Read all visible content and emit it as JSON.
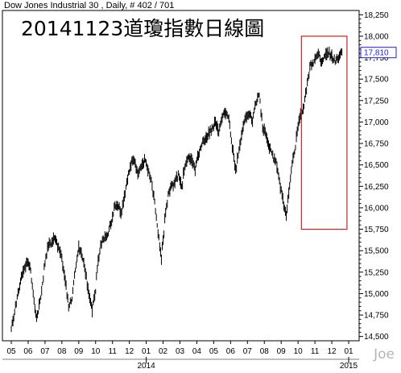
{
  "header": {
    "info": "Dow Jones Industrial 30 , Daily, # 402 / 701",
    "title": "20141123道瓊指數日線圖",
    "watermark": "Joe"
  },
  "chart_data": {
    "type": "line",
    "title": "20141123道瓊指數日線圖",
    "subtitle": "Dow Jones Industrial 30 , Daily, # 402 / 701",
    "xlabel": "",
    "ylabel": "",
    "ylim": [
      14450,
      18300
    ],
    "y_ticks": [
      14500,
      14750,
      15000,
      15250,
      15500,
      15750,
      16000,
      16250,
      16500,
      16750,
      17000,
      17250,
      17500,
      17750,
      18000,
      18250
    ],
    "y_tick_labels": [
      "14,500",
      "14,750",
      "15,000",
      "15,250",
      "15,500",
      "15,750",
      "16,000",
      "16,250",
      "16,500",
      "16,750",
      "17,000",
      "17,250",
      "17,500",
      "17,750",
      "18,000",
      "18,250"
    ],
    "last_value": 17810,
    "last_value_label": "17,810",
    "x_ticks": [
      "05",
      "06",
      "07",
      "08",
      "09",
      "10",
      "11",
      "12",
      "01",
      "02",
      "03",
      "04",
      "05",
      "06",
      "07",
      "08",
      "09",
      "10",
      "11",
      "12",
      "01"
    ],
    "x_year_labels": [
      {
        "label": "2014",
        "at_tick": 8
      },
      {
        "label": "2015",
        "at_tick": 20
      }
    ],
    "grid": false,
    "highlight_box": {
      "from_month_index": 17.2,
      "to_month_index": 19.9,
      "ymin": 15750,
      "ymax": 18000,
      "color": "#cc2222"
    },
    "colors": {
      "price": "#000000",
      "highlight": "#cc2222",
      "last_value": "#1a1aff"
    },
    "series": [
      {
        "name": "",
        "x": [
          0,
          0.15,
          0.3,
          0.45,
          0.6,
          0.8,
          1.0,
          1.15,
          1.3,
          1.5,
          1.7,
          1.9,
          2.05,
          2.2,
          2.4,
          2.6,
          2.8,
          3.0,
          3.2,
          3.4,
          3.6,
          3.8,
          4.0,
          4.2,
          4.4,
          4.6,
          4.8,
          5.0,
          5.15,
          5.3,
          5.5,
          5.7,
          5.9,
          6.1,
          6.3,
          6.5,
          6.7,
          6.9,
          7.1,
          7.3,
          7.5,
          7.7,
          7.9,
          8.1,
          8.3,
          8.5,
          8.7,
          8.9,
          9.1,
          9.3,
          9.5,
          9.7,
          9.9,
          10.1,
          10.3,
          10.5,
          10.7,
          10.9,
          11.1,
          11.3,
          11.5,
          11.7,
          11.9,
          12.1,
          12.3,
          12.5,
          12.7,
          12.9,
          13.1,
          13.3,
          13.5,
          13.7,
          13.9,
          14.1,
          14.3,
          14.5,
          14.7,
          14.9,
          15.1,
          15.3,
          15.5,
          15.7,
          15.9,
          16.1,
          16.3,
          16.5,
          16.7,
          16.9,
          17.1,
          17.3,
          17.5,
          17.6,
          17.7,
          17.8,
          17.9,
          18.0,
          18.2,
          18.4,
          18.6,
          18.8,
          19.0,
          19.2,
          19.4,
          19.6
        ],
        "values": [
          14600,
          14750,
          14900,
          15050,
          15200,
          15300,
          15400,
          15250,
          15000,
          14700,
          14900,
          15200,
          15450,
          15550,
          15600,
          15650,
          15550,
          15400,
          15150,
          14850,
          14950,
          15250,
          15550,
          15450,
          15250,
          15000,
          14800,
          15050,
          15400,
          15550,
          15650,
          15700,
          15800,
          16000,
          16050,
          15950,
          16150,
          16350,
          16500,
          16550,
          16400,
          16500,
          16550,
          16450,
          16300,
          16050,
          15700,
          15400,
          15850,
          16150,
          16250,
          16300,
          16400,
          16250,
          16500,
          16600,
          16550,
          16450,
          16650,
          16750,
          16800,
          16850,
          16950,
          17000,
          16900,
          17050,
          17100,
          17050,
          16700,
          16450,
          16650,
          16900,
          17050,
          17100,
          17000,
          17250,
          17300,
          16950,
          16850,
          16700,
          16600,
          16550,
          16300,
          16100,
          15900,
          16300,
          16550,
          16800,
          17050,
          17150,
          17400,
          17500,
          17650,
          17700,
          17700,
          17750,
          17800,
          17700,
          17800,
          17810,
          17750,
          17700,
          17750,
          17810
        ]
      }
    ]
  }
}
